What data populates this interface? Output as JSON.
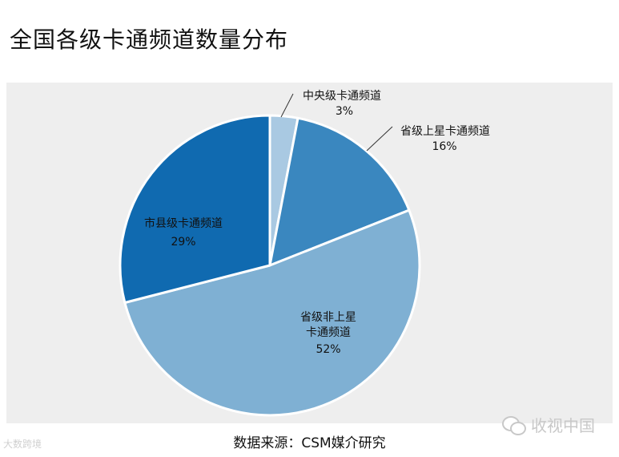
{
  "title": "全国各级卡通频道数量分布",
  "source": "数据来源：CSM媒介研究",
  "brand": "大数跨境",
  "watermark": "收视中国",
  "chart_data": {
    "type": "pie",
    "slices": [
      {
        "label": [
          "中央级卡通频道"
        ],
        "pct": "3%",
        "value": 3,
        "color": "#a9c9e2",
        "label_pos": "outside"
      },
      {
        "label": [
          "省级上星卡通频道"
        ],
        "pct": "16%",
        "value": 16,
        "color": "#3a87bf",
        "label_pos": "outside"
      },
      {
        "label": [
          "省级非上星",
          "卡通频道"
        ],
        "pct": "52%",
        "value": 52,
        "color": "#7fb0d3",
        "label_pos": "inside"
      },
      {
        "label": [
          "市县级卡通频道"
        ],
        "pct": "29%",
        "value": 29,
        "color": "#106ab0",
        "label_pos": "inside"
      }
    ]
  }
}
